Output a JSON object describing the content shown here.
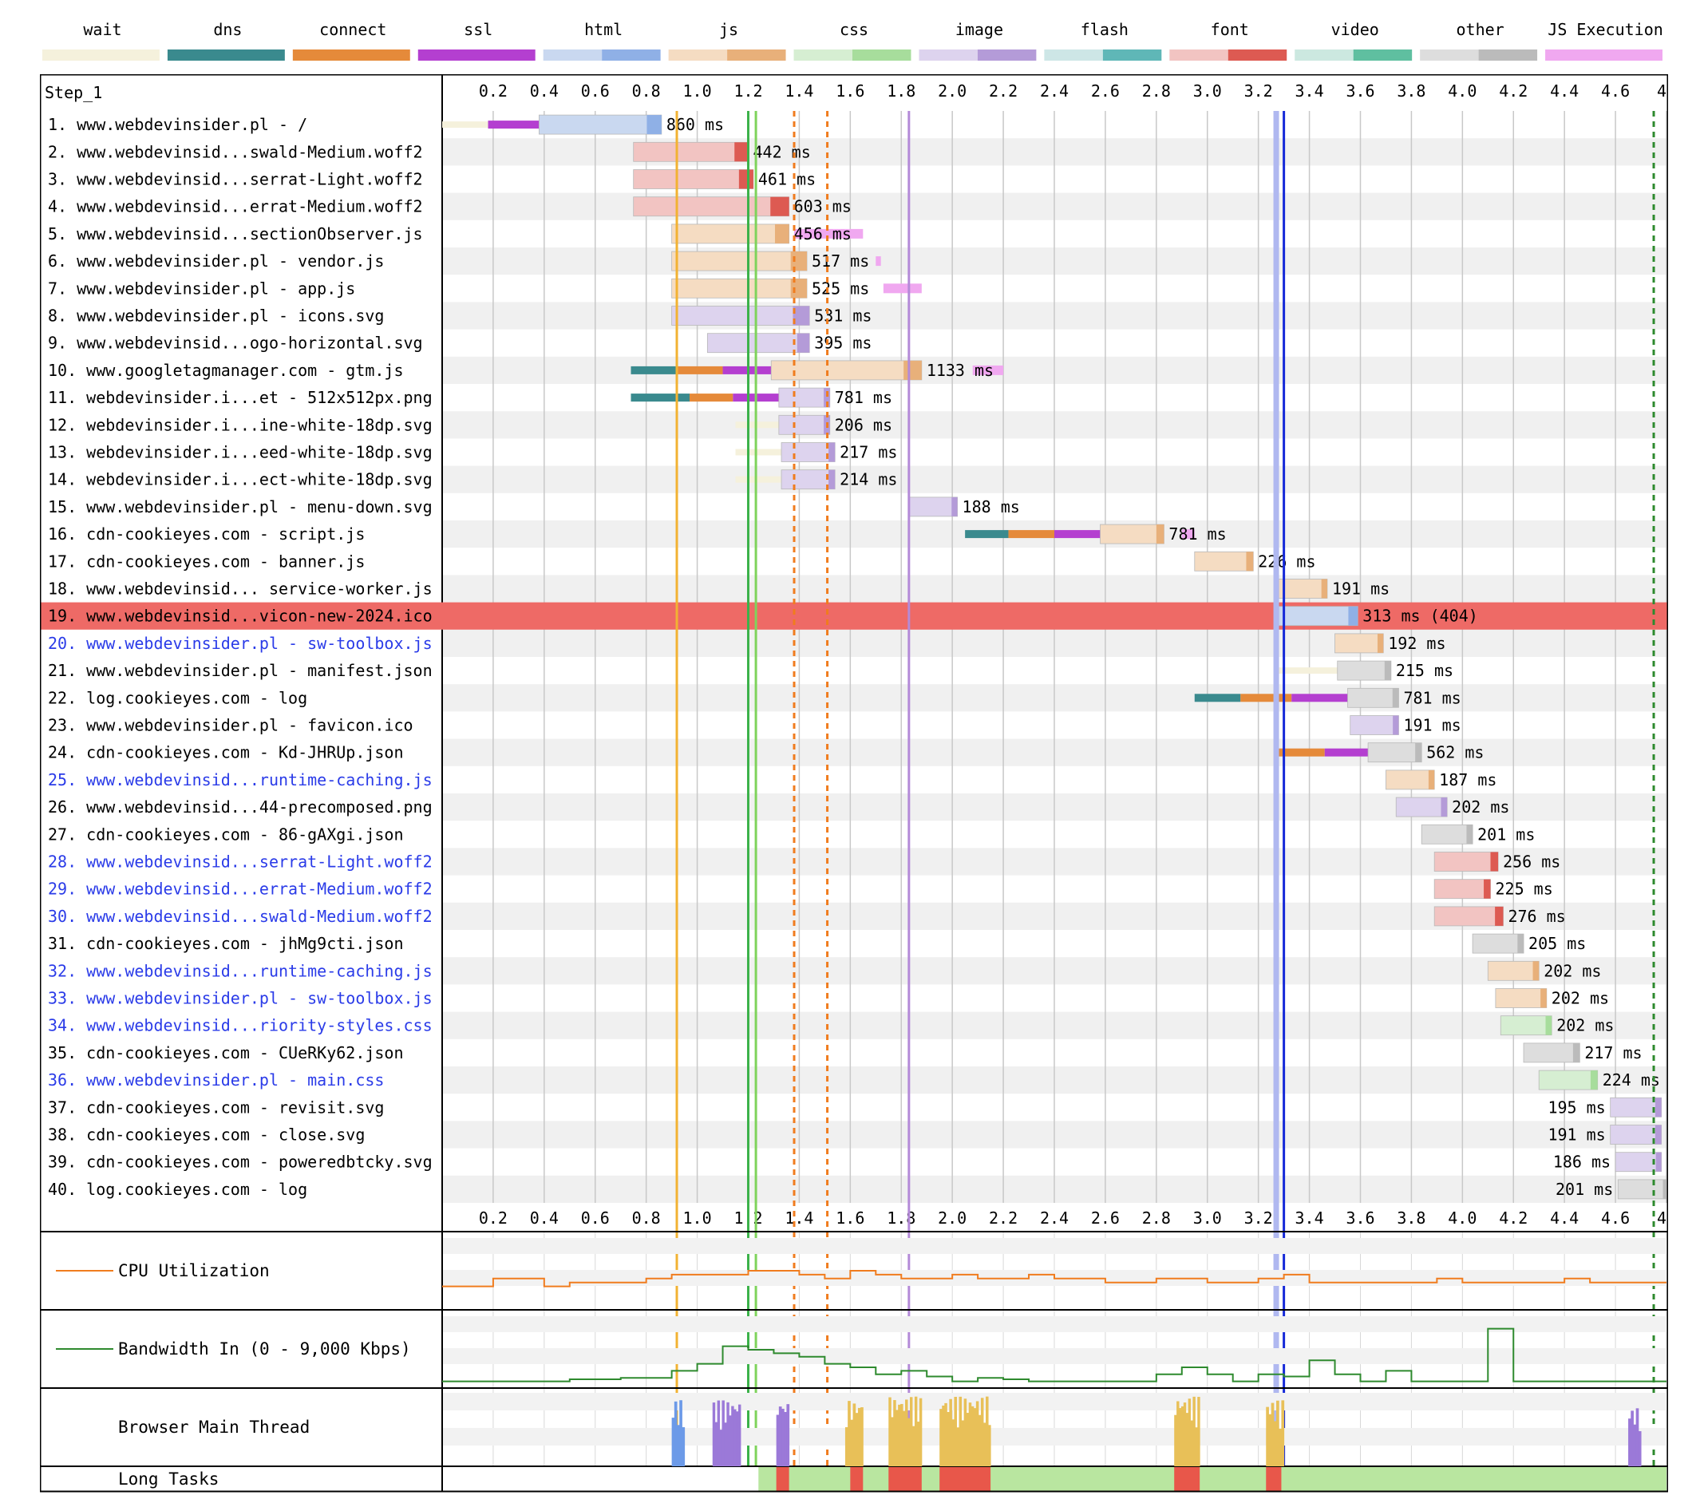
{
  "chart_data": {
    "type": "waterfall",
    "step_label": "Step_1",
    "legend": [
      {
        "name": "wait",
        "light": "#f5f1dc",
        "dark": "#f5f1dc"
      },
      {
        "name": "dns",
        "light": "#3a8a8e",
        "dark": "#3a8a8e"
      },
      {
        "name": "connect",
        "light": "#e58a3a",
        "dark": "#e58a3a"
      },
      {
        "name": "ssl",
        "light": "#b43fd0",
        "dark": "#b43fd0"
      },
      {
        "name": "html",
        "light": "#c9d8f0",
        "dark": "#8fb0e6"
      },
      {
        "name": "js",
        "light": "#f5dcc2",
        "dark": "#e8b07a"
      },
      {
        "name": "css",
        "light": "#d6eed2",
        "dark": "#a7dd9c"
      },
      {
        "name": "image",
        "light": "#ddd3ee",
        "dark": "#b49bd8"
      },
      {
        "name": "flash",
        "light": "#cde6e6",
        "dark": "#5fb7b7"
      },
      {
        "name": "font",
        "light": "#f2c4c2",
        "dark": "#dd5a52"
      },
      {
        "name": "video",
        "light": "#cce8e0",
        "dark": "#5fbfa0"
      },
      {
        "name": "other",
        "light": "#dddddd",
        "dark": "#bbbbbb"
      },
      {
        "name": "JS Execution",
        "light": "#f0a8f0",
        "dark": "#f0a8f0"
      }
    ],
    "x_ticks": [
      "0.2",
      "0.4",
      "0.6",
      "0.8",
      "1.0",
      "1.2",
      "1.4",
      "1.6",
      "1.8",
      "2.0",
      "2.2",
      "2.4",
      "2.6",
      "2.8",
      "3.0",
      "3.2",
      "3.4",
      "3.6",
      "3.8",
      "4.0",
      "4.2",
      "4.4",
      "4.6",
      "4."
    ],
    "xlim": [
      0,
      4.8
    ],
    "requests": [
      {
        "label": "1. www.webdevinsider.pl - /",
        "type": "html",
        "dns": null,
        "connect": null,
        "ssl": [
          0.18,
          0.38
        ],
        "wait": [
          0.0,
          0.18
        ],
        "start": 0.38,
        "end": 0.86,
        "duration": "860 ms",
        "link": false
      },
      {
        "label": "2. www.webdevinsid...swald-Medium.woff2",
        "type": "font",
        "start": 0.75,
        "end": 1.2,
        "duration": "442 ms",
        "link": false
      },
      {
        "label": "3. www.webdevinsid...serrat-Light.woff2",
        "type": "font",
        "start": 0.75,
        "end": 1.22,
        "duration": "461 ms",
        "link": false
      },
      {
        "label": "4. www.webdevinsid...errat-Medium.woff2",
        "type": "font",
        "start": 0.75,
        "end": 1.36,
        "duration": "603 ms",
        "link": false
      },
      {
        "label": "5. www.webdevinsid...sectionObserver.js",
        "type": "js",
        "start": 0.9,
        "end": 1.36,
        "duration": "456 ms",
        "jsx": [
          1.38,
          1.65
        ],
        "link": false
      },
      {
        "label": "6. www.webdevinsider.pl - vendor.js",
        "type": "js",
        "start": 0.9,
        "end": 1.43,
        "duration": "517 ms",
        "jsx": [
          1.7,
          1.72
        ],
        "link": false
      },
      {
        "label": "7. www.webdevinsider.pl - app.js",
        "type": "js",
        "start": 0.9,
        "end": 1.43,
        "duration": "525 ms",
        "jsx": [
          1.73,
          1.88
        ],
        "link": false
      },
      {
        "label": "8. www.webdevinsider.pl - icons.svg",
        "type": "image",
        "start": 0.9,
        "end": 1.44,
        "duration": "531 ms",
        "link": false
      },
      {
        "label": "9. www.webdevinsid...ogo-horizontal.svg",
        "type": "image",
        "start": 1.04,
        "end": 1.44,
        "duration": "395 ms",
        "link": false
      },
      {
        "label": "10. www.googletagmanager.com - gtm.js",
        "type": "js",
        "dns": [
          0.74,
          0.92
        ],
        "connect": [
          0.92,
          1.1
        ],
        "ssl": [
          1.1,
          1.29
        ],
        "start": 1.29,
        "end": 1.88,
        "duration": "1133 ms",
        "jsx": [
          2.08,
          2.2
        ],
        "link": false
      },
      {
        "label": "11. webdevinsider.i...et - 512x512px.png",
        "type": "image",
        "dns": [
          0.74,
          0.97
        ],
        "connect": [
          0.97,
          1.14
        ],
        "ssl": [
          1.14,
          1.32
        ],
        "start": 1.32,
        "end": 1.52,
        "duration": "781 ms",
        "link": false
      },
      {
        "label": "12. webdevinsider.i...ine-white-18dp.svg",
        "type": "image",
        "wait": [
          1.15,
          1.32
        ],
        "start": 1.32,
        "end": 1.52,
        "duration": "206 ms",
        "link": false
      },
      {
        "label": "13. webdevinsider.i...eed-white-18dp.svg",
        "type": "image",
        "wait": [
          1.15,
          1.33
        ],
        "start": 1.33,
        "end": 1.54,
        "duration": "217 ms",
        "link": false
      },
      {
        "label": "14. webdevinsider.i...ect-white-18dp.svg",
        "type": "image",
        "wait": [
          1.15,
          1.33
        ],
        "start": 1.33,
        "end": 1.54,
        "duration": "214 ms",
        "link": false
      },
      {
        "label": "15. www.webdevinsider.pl - menu-down.svg",
        "type": "image",
        "start": 1.83,
        "end": 2.02,
        "duration": "188 ms",
        "link": false
      },
      {
        "label": "16. cdn-cookieyes.com - script.js",
        "type": "js",
        "dns": [
          2.05,
          2.22
        ],
        "connect": [
          2.22,
          2.4
        ],
        "ssl": [
          2.4,
          2.58
        ],
        "start": 2.58,
        "end": 2.83,
        "duration": "781 ms",
        "jsx": [
          2.9,
          2.95
        ],
        "link": false
      },
      {
        "label": "17. cdn-cookieyes.com - banner.js",
        "type": "js",
        "start": 2.95,
        "end": 3.18,
        "duration": "226 ms",
        "link": false
      },
      {
        "label": "18. www.webdevinsid... service-worker.js",
        "type": "js",
        "start": 3.28,
        "end": 3.47,
        "duration": "191 ms",
        "link": false
      },
      {
        "label": "19. www.webdevinsid...vicon-new-2024.ico",
        "type": "html",
        "start": 3.28,
        "end": 3.59,
        "duration": "313 ms (404)",
        "error": true,
        "link": false
      },
      {
        "label": "20. www.webdevinsider.pl - sw-toolbox.js",
        "type": "js",
        "start": 3.5,
        "end": 3.69,
        "duration": "192 ms",
        "link": true
      },
      {
        "label": "21. www.webdevinsider.pl - manifest.json",
        "type": "other",
        "wait": [
          3.28,
          3.51
        ],
        "start": 3.51,
        "end": 3.72,
        "duration": "215 ms",
        "link": false
      },
      {
        "label": "22. log.cookieyes.com - log",
        "type": "other",
        "dns": [
          2.95,
          3.13
        ],
        "connect": [
          3.13,
          3.33
        ],
        "ssl": [
          3.33,
          3.55
        ],
        "start": 3.55,
        "end": 3.75,
        "duration": "781 ms",
        "link": false
      },
      {
        "label": "23. www.webdevinsider.pl - favicon.ico",
        "type": "image",
        "start": 3.56,
        "end": 3.75,
        "duration": "191 ms",
        "link": false
      },
      {
        "label": "24. cdn-cookieyes.com - Kd-JHRUp.json",
        "type": "other",
        "connect": [
          3.28,
          3.46
        ],
        "ssl": [
          3.46,
          3.63
        ],
        "start": 3.63,
        "end": 3.84,
        "duration": "562 ms",
        "link": false
      },
      {
        "label": "25. www.webdevinsid...runtime-caching.js",
        "type": "js",
        "start": 3.7,
        "end": 3.89,
        "duration": "187 ms",
        "link": true
      },
      {
        "label": "26. www.webdevinsid...44-precomposed.png",
        "type": "image",
        "start": 3.74,
        "end": 3.94,
        "duration": "202 ms",
        "link": false
      },
      {
        "label": "27. cdn-cookieyes.com - 86-gAXgi.json",
        "type": "other",
        "start": 3.84,
        "end": 4.04,
        "duration": "201 ms",
        "link": false
      },
      {
        "label": "28. www.webdevinsid...serrat-Light.woff2",
        "type": "font",
        "start": 3.89,
        "end": 4.14,
        "duration": "256 ms",
        "link": true
      },
      {
        "label": "29. www.webdevinsid...errat-Medium.woff2",
        "type": "font",
        "start": 3.89,
        "end": 4.11,
        "duration": "225 ms",
        "link": true
      },
      {
        "label": "30. www.webdevinsid...swald-Medium.woff2",
        "type": "font",
        "start": 3.89,
        "end": 4.16,
        "duration": "276 ms",
        "link": true
      },
      {
        "label": "31. cdn-cookieyes.com - jhMg9cti.json",
        "type": "other",
        "start": 4.04,
        "end": 4.24,
        "duration": "205 ms",
        "link": false
      },
      {
        "label": "32. www.webdevinsid...runtime-caching.js",
        "type": "js",
        "start": 4.1,
        "end": 4.3,
        "duration": "202 ms",
        "link": true
      },
      {
        "label": "33. www.webdevinsider.pl - sw-toolbox.js",
        "type": "js",
        "start": 4.13,
        "end": 4.33,
        "duration": "202 ms",
        "link": true
      },
      {
        "label": "34. www.webdevinsid...riority-styles.css",
        "type": "css",
        "start": 4.15,
        "end": 4.35,
        "duration": "202 ms",
        "link": true
      },
      {
        "label": "35. cdn-cookieyes.com - CUeRKy62.json",
        "type": "other",
        "start": 4.24,
        "end": 4.46,
        "duration": "217 ms",
        "link": false
      },
      {
        "label": "36. www.webdevinsider.pl - main.css",
        "type": "css",
        "start": 4.3,
        "end": 4.53,
        "duration": "224 ms",
        "link": true
      },
      {
        "label": "37. cdn-cookieyes.com - revisit.svg",
        "type": "image",
        "start": 4.58,
        "end": 4.78,
        "duration": "195 ms",
        "durLeft": true,
        "link": false
      },
      {
        "label": "38. cdn-cookieyes.com - close.svg",
        "type": "image",
        "start": 4.58,
        "end": 4.78,
        "duration": "191 ms",
        "durLeft": true,
        "link": false
      },
      {
        "label": "39. cdn-cookieyes.com - poweredbtcky.svg",
        "type": "image",
        "start": 4.6,
        "end": 4.78,
        "duration": "186 ms",
        "durLeft": true,
        "link": false
      },
      {
        "label": "40. log.cookieyes.com - log",
        "type": "other",
        "start": 4.61,
        "end": 4.81,
        "duration": "201 ms",
        "durLeft": true,
        "link": false
      }
    ],
    "markers": [
      {
        "t": 0.92,
        "color": "#f2b233",
        "style": "solid"
      },
      {
        "t": 1.2,
        "color": "#3cb24a",
        "style": "solid"
      },
      {
        "t": 1.23,
        "color": "#7fd35c",
        "style": "solid"
      },
      {
        "t": 1.38,
        "color": "#f07c1e",
        "style": "dashed"
      },
      {
        "t": 1.51,
        "color": "#f07c1e",
        "style": "dashed"
      },
      {
        "t": 1.83,
        "color": "#b48ad8",
        "style": "solid"
      },
      {
        "t": 3.27,
        "color": "#b0b8f0",
        "style": "wide"
      },
      {
        "t": 3.3,
        "color": "#1428d8",
        "style": "solid"
      },
      {
        "t": 4.75,
        "color": "#2e8a2e",
        "style": "dashed"
      }
    ],
    "cpu_label": "CPU Utilization",
    "bandwidth_label": "Bandwidth In (0 - 9,000 Kbps)",
    "main_thread_label": "Browser Main Thread",
    "long_tasks_label": "Long Tasks",
    "cpu_series": [
      0.3,
      0.3,
      0.4,
      0.4,
      0.3,
      0.35,
      0.35,
      0.35,
      0.4,
      0.45,
      0.45,
      0.45,
      0.5,
      0.5,
      0.45,
      0.4,
      0.5,
      0.45,
      0.4,
      0.4,
      0.45,
      0.4,
      0.4,
      0.45,
      0.4,
      0.4,
      0.35,
      0.35,
      0.4,
      0.4,
      0.35,
      0.35,
      0.4,
      0.45,
      0.35,
      0.35,
      0.35,
      0.35,
      0.35,
      0.4,
      0.35,
      0.35,
      0.35,
      0.35,
      0.4,
      0.35,
      0.35,
      0.35
    ],
    "bandwidth_series": [
      0.05,
      0.05,
      0.05,
      0.05,
      0.05,
      0.08,
      0.08,
      0.1,
      0.1,
      0.2,
      0.3,
      0.55,
      0.5,
      0.45,
      0.4,
      0.3,
      0.25,
      0.15,
      0.2,
      0.12,
      0.05,
      0.1,
      0.08,
      0.05,
      0.05,
      0.05,
      0.05,
      0.05,
      0.15,
      0.25,
      0.15,
      0.05,
      0.15,
      0.12,
      0.35,
      0.15,
      0.05,
      0.2,
      0.05,
      0.05,
      0.05,
      0.8,
      0.05,
      0.05,
      0.05,
      0.05,
      0.05,
      0.05
    ],
    "long_tasks": [
      {
        "start": 1.24,
        "end": 4.8,
        "kind": "idle"
      },
      {
        "start": 1.31,
        "end": 1.36,
        "kind": "long"
      },
      {
        "start": 1.6,
        "end": 1.65,
        "kind": "long"
      },
      {
        "start": 1.75,
        "end": 1.88,
        "kind": "long"
      },
      {
        "start": 1.95,
        "end": 2.15,
        "kind": "long"
      },
      {
        "start": 2.87,
        "end": 2.97,
        "kind": "long"
      },
      {
        "start": 3.23,
        "end": 3.29,
        "kind": "long"
      }
    ],
    "main_thread_bursts": [
      {
        "start": 0.9,
        "end": 0.95,
        "color": "#6c9ae8",
        "h": 0.9
      },
      {
        "start": 1.06,
        "end": 1.17,
        "color": "#9b79d8",
        "h": 0.9
      },
      {
        "start": 1.31,
        "end": 1.36,
        "color": "#9b79d8",
        "h": 0.9
      },
      {
        "start": 1.58,
        "end": 1.65,
        "color": "#e8c058",
        "h": 0.9
      },
      {
        "start": 1.75,
        "end": 1.88,
        "color": "#e8c058",
        "h": 0.95
      },
      {
        "start": 1.95,
        "end": 2.15,
        "color": "#e8c058",
        "h": 0.95
      },
      {
        "start": 2.87,
        "end": 2.97,
        "color": "#e8c058",
        "h": 0.95
      },
      {
        "start": 3.23,
        "end": 3.3,
        "color": "#e8c058",
        "h": 0.9
      },
      {
        "start": 4.65,
        "end": 4.7,
        "color": "#9b79d8",
        "h": 0.8
      }
    ]
  }
}
